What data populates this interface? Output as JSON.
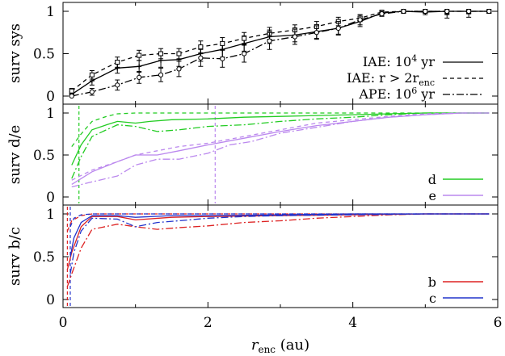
{
  "chart_data": [
    {
      "type": "line",
      "panel": "top",
      "ylabel": "surv sys",
      "xlim": [
        0,
        6
      ],
      "ylim": [
        0,
        1
      ],
      "yticks": [
        "0",
        "0.5",
        "1"
      ],
      "legend_position": "bottom-right",
      "series": [
        {
          "name": "IAE: 10^4 yr",
          "style": "solid",
          "color": "#000000",
          "marker": "plus",
          "x": [
            0.12,
            0.4,
            0.75,
            1.05,
            1.35,
            1.6,
            1.9,
            2.2,
            2.5,
            2.85,
            3.2,
            3.5,
            3.8,
            4.1,
            4.4,
            4.7,
            5.0,
            5.3,
            5.6,
            5.88
          ],
          "y": [
            0.02,
            0.18,
            0.33,
            0.35,
            0.42,
            0.43,
            0.5,
            0.55,
            0.62,
            0.7,
            0.72,
            0.76,
            0.8,
            0.88,
            0.98,
            1.0,
            0.99,
            1.0,
            1.0,
            1.0
          ],
          "err": [
            0.03,
            0.05,
            0.06,
            0.07,
            0.08,
            0.08,
            0.09,
            0.09,
            0.09,
            0.08,
            0.08,
            0.08,
            0.07,
            0.06,
            0.03,
            0.02,
            0.03,
            0.08,
            0.07,
            0.02
          ]
        },
        {
          "name": "IAE: r > 2r_enc",
          "style": "dashed",
          "color": "#000000",
          "marker": "square",
          "x": [
            0.12,
            0.4,
            0.75,
            1.05,
            1.35,
            1.6,
            1.9,
            2.2,
            2.5,
            2.85,
            3.2,
            3.5,
            3.8,
            4.1,
            4.4,
            4.7,
            5.0,
            5.3,
            5.6,
            5.88
          ],
          "y": [
            0.06,
            0.25,
            0.4,
            0.48,
            0.5,
            0.5,
            0.58,
            0.62,
            0.68,
            0.74,
            0.78,
            0.82,
            0.88,
            0.92,
            0.99,
            1.0,
            1.0,
            1.0,
            1.0,
            1.0
          ],
          "err": [
            0.03,
            0.05,
            0.06,
            0.06,
            0.06,
            0.06,
            0.07,
            0.07,
            0.07,
            0.07,
            0.06,
            0.06,
            0.05,
            0.04,
            0.02,
            0.02,
            0.02,
            0.03,
            0.02,
            0.02
          ]
        },
        {
          "name": "APE: 10^6 yr",
          "style": "dashdot",
          "color": "#000000",
          "marker": "circle",
          "x": [
            0.12,
            0.4,
            0.75,
            1.05,
            1.35,
            1.6,
            1.9,
            2.2,
            2.5,
            2.85,
            3.2,
            3.5,
            3.8,
            4.1,
            4.4,
            4.7,
            5.0,
            5.3,
            5.6,
            5.88
          ],
          "y": [
            0.0,
            0.05,
            0.13,
            0.22,
            0.25,
            0.32,
            0.45,
            0.44,
            0.5,
            0.65,
            0.7,
            0.75,
            0.8,
            0.9,
            0.97,
            1.0,
            1.0,
            1.0,
            1.0,
            1.0
          ],
          "err": [
            0.02,
            0.04,
            0.06,
            0.07,
            0.08,
            0.09,
            0.1,
            0.1,
            0.1,
            0.1,
            0.09,
            0.08,
            0.08,
            0.06,
            0.03,
            0.02,
            0.02,
            0.04,
            0.03,
            0.02
          ]
        }
      ],
      "legend": [
        {
          "text": "IAE: 10",
          "sup": "4",
          "suffix": " yr",
          "style": "solid"
        },
        {
          "text": "IAE: r > 2r",
          "sub": "enc",
          "style": "dashed"
        },
        {
          "text": "APE: 10",
          "sup": "6",
          "suffix": " yr",
          "style": "dashdot"
        }
      ]
    },
    {
      "type": "line",
      "panel": "middle",
      "ylabel": "surv d/e",
      "xlim": [
        0,
        6
      ],
      "ylim": [
        0,
        1
      ],
      "yticks": [
        "0",
        "0.5",
        "1"
      ],
      "legend_position": "bottom-right",
      "vertical_lines": [
        {
          "x": 0.22,
          "color": "#22cc22"
        },
        {
          "x": 2.1,
          "color": "#bb88ee"
        }
      ],
      "series": [
        {
          "name": "d",
          "planet": "d",
          "style": "solid",
          "color": "#22cc22",
          "x": [
            0.12,
            0.25,
            0.4,
            0.6,
            0.75,
            1.0,
            1.2,
            1.5,
            2.0,
            2.5,
            3.0,
            3.5,
            4.0,
            4.5,
            5.0,
            5.5,
            5.88
          ],
          "y": [
            0.38,
            0.62,
            0.8,
            0.86,
            0.9,
            0.88,
            0.9,
            0.92,
            0.93,
            0.95,
            0.96,
            0.97,
            0.98,
            0.99,
            1.0,
            1.0,
            1.0
          ]
        },
        {
          "name": "d-dashed",
          "style": "dashed",
          "color": "#22cc22",
          "x": [
            0.12,
            0.25,
            0.4,
            0.6,
            0.75,
            1.0,
            2.0,
            3.0,
            4.0,
            5.0,
            5.88
          ],
          "y": [
            0.6,
            0.75,
            0.9,
            0.96,
            0.99,
            1.0,
            1.0,
            1.0,
            1.0,
            1.0,
            1.0
          ]
        },
        {
          "name": "d-dashdot",
          "style": "dashdot",
          "color": "#22cc22",
          "x": [
            0.12,
            0.25,
            0.4,
            0.6,
            0.75,
            1.0,
            1.3,
            1.6,
            2.0,
            2.5,
            3.0,
            3.5,
            4.0,
            4.5,
            5.0,
            5.5,
            5.88
          ],
          "y": [
            0.22,
            0.48,
            0.72,
            0.8,
            0.86,
            0.84,
            0.78,
            0.8,
            0.84,
            0.86,
            0.9,
            0.93,
            0.95,
            0.98,
            1.0,
            1.0,
            1.0
          ]
        },
        {
          "name": "e",
          "planet": "e",
          "style": "solid",
          "color": "#bb88ee",
          "x": [
            0.12,
            0.4,
            0.75,
            1.0,
            1.3,
            1.6,
            2.0,
            2.5,
            3.0,
            3.5,
            4.0,
            4.5,
            5.0,
            5.5,
            5.88
          ],
          "y": [
            0.15,
            0.3,
            0.42,
            0.5,
            0.5,
            0.55,
            0.62,
            0.7,
            0.78,
            0.85,
            0.9,
            0.95,
            0.98,
            1.0,
            1.0
          ]
        },
        {
          "name": "e-dashed",
          "style": "dashed",
          "color": "#bb88ee",
          "x": [
            0.12,
            0.4,
            0.75,
            1.0,
            1.3,
            1.6,
            2.0,
            2.5,
            3.0,
            3.5,
            4.0,
            4.5,
            5.0,
            5.5,
            5.88
          ],
          "y": [
            0.2,
            0.32,
            0.42,
            0.5,
            0.55,
            0.6,
            0.64,
            0.72,
            0.8,
            0.88,
            0.92,
            0.96,
            0.99,
            1.0,
            1.0
          ]
        },
        {
          "name": "e-dashdot",
          "style": "dashdot",
          "color": "#bb88ee",
          "x": [
            0.12,
            0.4,
            0.75,
            1.0,
            1.3,
            1.6,
            2.0,
            2.3,
            2.6,
            3.0,
            3.5,
            4.0,
            4.5,
            5.0,
            5.5,
            5.88
          ],
          "y": [
            0.12,
            0.18,
            0.25,
            0.38,
            0.45,
            0.45,
            0.52,
            0.62,
            0.66,
            0.76,
            0.83,
            0.9,
            0.95,
            0.98,
            1.0,
            1.0
          ]
        }
      ],
      "legend": [
        {
          "text": "d",
          "color": "#22cc22"
        },
        {
          "text": "e",
          "color": "#bb88ee"
        }
      ]
    },
    {
      "type": "line",
      "panel": "bottom",
      "ylabel": "surv b/c",
      "xlabel": "r_enc (au)",
      "xlim": [
        0,
        6
      ],
      "ylim": [
        0,
        1
      ],
      "xticks": [
        "0",
        "2",
        "4",
        "6"
      ],
      "yticks": [
        "0",
        "0.5",
        "1"
      ],
      "legend_position": "bottom-right",
      "vertical_lines": [
        {
          "x": 0.06,
          "color": "#dd2222"
        },
        {
          "x": 0.1,
          "color": "#2233cc"
        }
      ],
      "series": [
        {
          "name": "b",
          "planet": "b",
          "style": "solid",
          "color": "#dd2222",
          "x": [
            0.06,
            0.12,
            0.25,
            0.4,
            0.75,
            1.0,
            1.5,
            2.0,
            3.0,
            4.0,
            5.0,
            5.88
          ],
          "y": [
            0.35,
            0.55,
            0.85,
            0.97,
            0.97,
            0.93,
            0.96,
            0.97,
            0.98,
            0.99,
            1.0,
            1.0
          ]
        },
        {
          "name": "b-dashed",
          "style": "dashed",
          "color": "#dd2222",
          "x": [
            0.06,
            0.12,
            0.25,
            0.4,
            1.0,
            2.0,
            4.0,
            5.88
          ],
          "y": [
            0.8,
            0.92,
            0.98,
            1.0,
            1.0,
            1.0,
            1.0,
            1.0
          ]
        },
        {
          "name": "b-dashdot",
          "style": "dashdot",
          "color": "#dd2222",
          "x": [
            0.06,
            0.12,
            0.25,
            0.4,
            0.75,
            1.0,
            1.3,
            1.6,
            2.0,
            2.5,
            3.0,
            3.5,
            4.0,
            4.5,
            5.0,
            5.88
          ],
          "y": [
            0.15,
            0.3,
            0.6,
            0.82,
            0.88,
            0.85,
            0.82,
            0.84,
            0.86,
            0.9,
            0.92,
            0.95,
            0.97,
            0.99,
            1.0,
            1.0
          ]
        },
        {
          "name": "c",
          "planet": "c",
          "style": "solid",
          "color": "#2233cc",
          "x": [
            0.1,
            0.15,
            0.25,
            0.4,
            0.75,
            1.0,
            1.5,
            2.0,
            3.0,
            4.0,
            5.0,
            5.88
          ],
          "y": [
            0.5,
            0.72,
            0.9,
            0.98,
            0.98,
            0.96,
            0.98,
            0.98,
            0.99,
            1.0,
            1.0,
            1.0
          ]
        },
        {
          "name": "c-dashed",
          "style": "dashed",
          "color": "#2233cc",
          "x": [
            0.1,
            0.15,
            0.25,
            0.4,
            1.0,
            2.0,
            4.0,
            5.88
          ],
          "y": [
            0.85,
            0.95,
            0.99,
            1.0,
            1.0,
            1.0,
            1.0,
            1.0
          ]
        },
        {
          "name": "c-dashdot",
          "style": "dashdot",
          "color": "#2233cc",
          "x": [
            0.1,
            0.15,
            0.25,
            0.4,
            0.75,
            1.0,
            1.3,
            1.6,
            2.0,
            2.5,
            3.0,
            4.0,
            5.0,
            5.88
          ],
          "y": [
            0.3,
            0.55,
            0.8,
            0.95,
            0.94,
            0.85,
            0.9,
            0.92,
            0.95,
            0.97,
            0.98,
            0.99,
            1.0,
            1.0
          ]
        }
      ],
      "legend": [
        {
          "text": "b",
          "color": "#dd2222"
        },
        {
          "text": "c",
          "color": "#2233cc"
        }
      ]
    }
  ]
}
